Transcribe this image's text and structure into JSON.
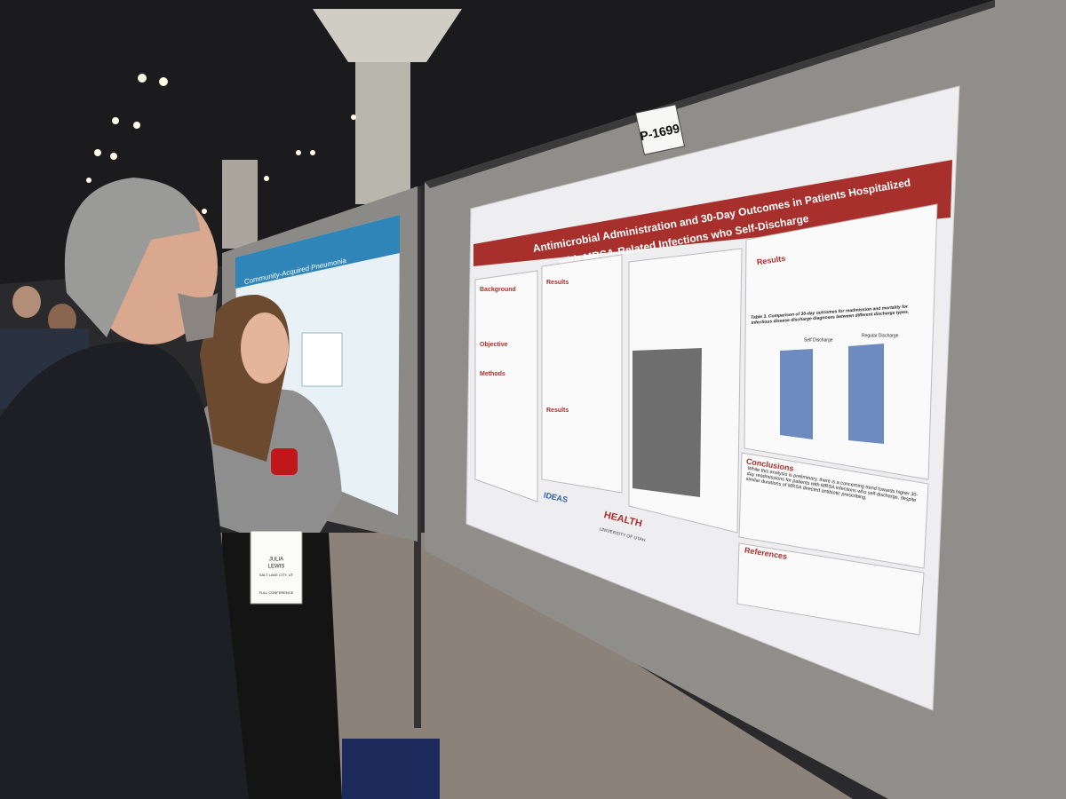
{
  "sign": "P-1699",
  "poster": {
    "title_line1": "Antimicrobial Administration and 30-Day Outcomes in Patients Hospitalized",
    "title_line2": "with MRSA-Related Infections who Self-Discharge",
    "sections": {
      "background": "Background",
      "objective": "Objective",
      "methods": "Methods",
      "results_left": "Results",
      "results_mid": "Results",
      "results_right": "Results",
      "conclusions": "Conclusions",
      "references": "References"
    },
    "table_title": "Table 3. Comparison of 30-day outcomes for readmission and mortality for infectious disease discharge diagnoses between different discharge types.",
    "table_columns": [
      "Self Discharge",
      "Regular Discharge"
    ],
    "conclusion_text": "While this analysis is preliminary, there is a concerning trend towards higher 30-day readmissions for patients with MRSA infections who self-discharge, despite similar durations of MRSA directed antibiotic prescribing.",
    "logos": {
      "ideas": "IDEAS",
      "health": "HEALTH",
      "university": "UNIVERSITY OF UTAH"
    }
  },
  "left_poster": {
    "title": "Community-Acquired Pneumonia"
  },
  "badge": {
    "first_name": "JULIA",
    "last_name": "LEWIS",
    "city": "SALT LAKE CITY, UT",
    "type": "FULL CONFERENCE"
  }
}
